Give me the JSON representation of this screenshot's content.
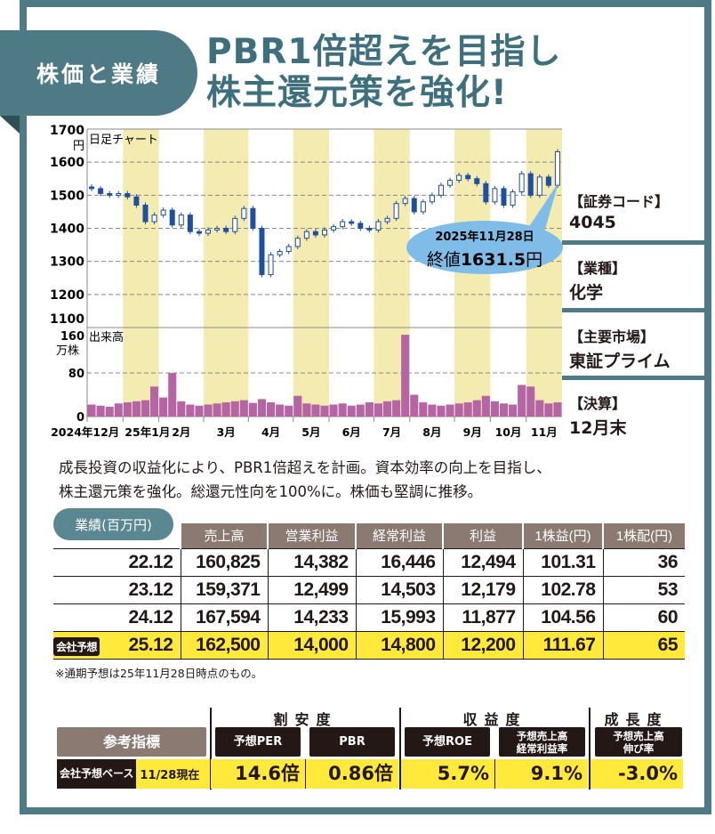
{
  "header": {
    "tab_label": "株価と業績",
    "title_line1": "PBR1倍超えを目指し",
    "title_line2": "株主還元策を強化!"
  },
  "colors": {
    "frame": "#4e7a86",
    "candle": "#1f4fa0",
    "volume": "#b565a3",
    "band": "#f3ebb0",
    "callout": "#7fbde8",
    "forecast_row": "#ffe93a"
  },
  "chart_data": [
    {
      "type": "candlestick",
      "title": "日足チャート",
      "ylabel": "円",
      "ylim": [
        1100,
        1700
      ],
      "yticks": [
        1100,
        1200,
        1300,
        1400,
        1500,
        1600,
        1700
      ],
      "grid": true,
      "xticklabels": [
        "2024年12月",
        "25年1月",
        "2月",
        "3月",
        "4月",
        "5月",
        "6月",
        "7月",
        "8月",
        "9月",
        "10月",
        "11月"
      ],
      "month_point_counts": [
        4,
        4,
        5,
        5,
        5,
        4,
        5,
        4,
        5,
        4,
        4,
        4
      ],
      "closes": [
        1520,
        1505,
        1500,
        1505,
        1495,
        1470,
        1420,
        1440,
        1455,
        1410,
        1440,
        1390,
        1385,
        1395,
        1400,
        1390,
        1430,
        1460,
        1400,
        1260,
        1320,
        1330,
        1345,
        1370,
        1390,
        1380,
        1395,
        1405,
        1420,
        1415,
        1400,
        1395,
        1420,
        1430,
        1475,
        1490,
        1450,
        1480,
        1500,
        1530,
        1545,
        1560,
        1550,
        1535,
        1480,
        1520,
        1470,
        1510,
        1565,
        1500,
        1555,
        1530,
        1631.5
      ],
      "annotation": {
        "date": "2025年11月28日",
        "label": "終値",
        "value": "1631.5",
        "unit": "円"
      }
    },
    {
      "type": "bar",
      "title": "出来高",
      "ylabel": "万株",
      "ylim": [
        0,
        160
      ],
      "yticks": [
        0,
        80,
        160
      ],
      "values": [
        22,
        20,
        18,
        24,
        26,
        28,
        30,
        55,
        35,
        80,
        28,
        22,
        20,
        22,
        24,
        26,
        28,
        30,
        25,
        32,
        26,
        22,
        20,
        38,
        24,
        22,
        20,
        22,
        24,
        20,
        22,
        26,
        24,
        28,
        30,
        150,
        40,
        26,
        22,
        20,
        22,
        24,
        26,
        30,
        38,
        28,
        24,
        22,
        58,
        55,
        30,
        24,
        26
      ]
    }
  ],
  "side": {
    "items": [
      {
        "key": "【証券コード】",
        "value": "4045"
      },
      {
        "key": "【業種】",
        "value": "化学"
      },
      {
        "key": "【主要市場】",
        "value": "東証プライム"
      },
      {
        "key": "【決算】",
        "value": "12月末"
      }
    ]
  },
  "description": [
    "成長投資の収益化により、PBR1倍超えを計画。資本効率の向上を目指し、",
    "株主還元策を強化。総還元性向を100%に。株価も堅調に推移。"
  ],
  "performance": {
    "badge": "業績(百万円)",
    "headers": [
      "売上高",
      "営業利益",
      "経常利益",
      "利益",
      "1株益(円)",
      "1株配(円)"
    ],
    "rows": [
      [
        "22.12",
        "160,825",
        "14,382",
        "16,446",
        "12,494",
        "101.31",
        "36"
      ],
      [
        "23.12",
        "159,371",
        "12,499",
        "14,503",
        "12,179",
        "102.78",
        "53"
      ],
      [
        "24.12",
        "167,594",
        "14,233",
        "15,993",
        "11,877",
        "104.56",
        "60"
      ],
      [
        "25.12",
        "162,500",
        "14,000",
        "14,800",
        "12,200",
        "111.67",
        "65"
      ]
    ],
    "forecast_tag": "会社予想",
    "note": "※通期予想は25年11月28日時点のもの。"
  },
  "indicators": {
    "title": "参考指標",
    "groups": [
      "割安度",
      "収益度",
      "成長度"
    ],
    "labels": [
      "予想PER",
      "PBR",
      "予想ROE",
      "予想売上高\n経常利益率",
      "予想売上高\n伸び率"
    ],
    "basis_tag": "会社予想ベース",
    "basis_date": "11/28現在",
    "values": [
      "14.6倍",
      "0.86倍",
      "5.7%",
      "9.1%",
      "-3.0%"
    ]
  }
}
